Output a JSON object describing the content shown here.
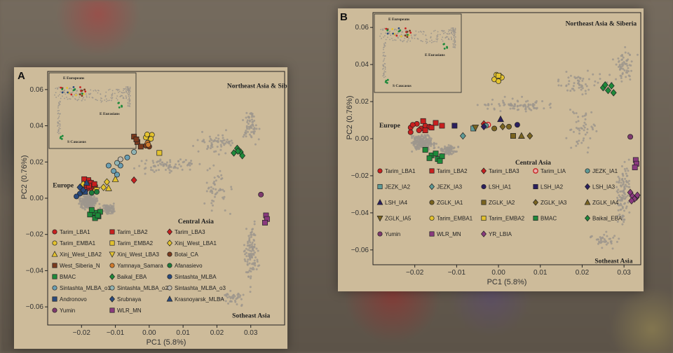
{
  "chart_data": [
    {
      "type": "scatter",
      "panel": "A",
      "xlabel": "PC1 (5.8%)",
      "ylabel": "PC2 (0.76%)",
      "xlim": [
        -0.03,
        0.04
      ],
      "ylim": [
        -0.07,
        0.07
      ],
      "xticks": [
        -0.02,
        -0.01,
        0.0,
        0.01,
        0.02,
        0.03
      ],
      "yticks": [
        0.06,
        0.04,
        0.02,
        0.0,
        -0.02,
        -0.04,
        -0.06
      ],
      "xtick_labels": [
        "−0.02",
        "−0.01",
        "0.00",
        "0.01",
        "0.02",
        "0.03"
      ],
      "ytick_labels": [
        "0.06",
        "0.04",
        "0.02",
        "0.00",
        "−0.02",
        "−0.04",
        "−0.06"
      ],
      "region_labels": [
        {
          "text": "Northeast Asia & Siberia",
          "x": 0.023,
          "y": 0.061
        },
        {
          "text": "Europe",
          "x": -0.0285,
          "y": 0.006
        },
        {
          "text": "Central Asia",
          "x": 0.0085,
          "y": -0.014
        },
        {
          "text": "Sotheast Asia",
          "x": 0.0245,
          "y": -0.066
        }
      ],
      "inset_labels": [
        "E Europeans",
        "E Eurasians",
        "S Caucasus"
      ],
      "legend_columns": 3,
      "series": [
        {
          "name": "Tarim_LBA1",
          "marker": "circle",
          "color": "#c8201f",
          "points": [
            [
              -0.019,
              0.009
            ],
            [
              -0.018,
              0.008
            ],
            [
              -0.0175,
              0.006
            ],
            [
              -0.019,
              0.006
            ],
            [
              -0.0165,
              0.007
            ],
            [
              -0.0185,
              0.005
            ],
            [
              -0.0178,
              0.0095
            ],
            [
              -0.0188,
              0.0075
            ],
            [
              -0.017,
              0.005
            ]
          ]
        },
        {
          "name": "Tarim_LBA2",
          "marker": "square",
          "color": "#c8201f",
          "points": [
            [
              -0.018,
              0.01
            ],
            [
              -0.0172,
              0.0085
            ],
            [
              -0.016,
              0.006
            ],
            [
              -0.0192,
              0.0105
            ],
            [
              -0.0162,
              0.0078
            ],
            [
              -0.0178,
              0.0068
            ]
          ]
        },
        {
          "name": "Tarim_LBA3",
          "marker": "diamond",
          "color": "#c8201f",
          "points": [
            [
              -0.0045,
              0.01
            ]
          ]
        },
        {
          "name": "Tarim_EMBA1",
          "marker": "circle",
          "color": "#e3c22f",
          "points": [
            [
              -0.0002,
              0.034
            ],
            [
              0.0008,
              0.035
            ],
            [
              0.0,
              0.0325
            ],
            [
              -0.001,
              0.0335
            ],
            [
              0.0005,
              0.0328
            ],
            [
              -0.0006,
              0.0352
            ]
          ]
        },
        {
          "name": "Tarim_EMBA2",
          "marker": "square",
          "color": "#e3c22f",
          "points": [
            [
              0.003,
              0.025
            ]
          ]
        },
        {
          "name": "Xinj_West_LBA1",
          "marker": "diamond",
          "color": "#e3c22f",
          "points": [
            [
              -0.0195,
              0.0078
            ],
            [
              -0.0135,
              0.006
            ],
            [
              -0.0125,
              0.009
            ]
          ]
        },
        {
          "name": "Xinj_West_LBA2",
          "marker": "triangle-up",
          "color": "#e3c22f",
          "points": [
            [
              -0.016,
              0.005
            ],
            [
              -0.012,
              0.0055
            ],
            [
              -0.01,
              0.0105
            ]
          ]
        },
        {
          "name": "Xinj_West_LBA3",
          "marker": "triangle-down",
          "color": "#e3c22f",
          "points": [
            [
              -0.0155,
              0.0045
            ]
          ]
        },
        {
          "name": "Botai_CA",
          "marker": "circle",
          "color": "#7a3a1d",
          "points": [
            [
              -0.001,
              0.029
            ],
            [
              0.0,
              0.0285
            ]
          ]
        },
        {
          "name": "West_Siberia_N",
          "marker": "square",
          "color": "#7a3a1d",
          "points": [
            [
              -0.0045,
              0.034
            ],
            [
              -0.0035,
              0.031
            ],
            [
              -0.0025,
              0.0285
            ],
            [
              -0.0038,
              0.0325
            ]
          ]
        },
        {
          "name": "Yamnaya_Samara",
          "marker": "circle",
          "color": "#d07a2c",
          "points": [
            [
              -0.0005,
              0.0305
            ],
            [
              -0.0003,
              0.0295
            ]
          ]
        },
        {
          "name": "Afanasievo",
          "marker": "circle",
          "color": "#1f7a3a",
          "points": [
            [
              -0.0155,
              0.0035
            ],
            [
              -0.017,
              0.003
            ]
          ]
        },
        {
          "name": "BMAC",
          "marker": "square",
          "color": "#1e8a3a",
          "points": [
            [
              -0.016,
              -0.008
            ],
            [
              -0.015,
              -0.01
            ],
            [
              -0.0175,
              -0.009
            ],
            [
              -0.0145,
              -0.0075
            ],
            [
              -0.016,
              -0.011
            ],
            [
              -0.017,
              -0.0065
            ],
            [
              -0.0152,
              -0.0095
            ]
          ]
        },
        {
          "name": "Baikal_EBA",
          "marker": "diamond",
          "color": "#1e8a3a",
          "points": [
            [
              0.026,
              0.0275
            ],
            [
              0.027,
              0.0255
            ],
            [
              0.025,
              0.025
            ],
            [
              0.0275,
              0.0235
            ],
            [
              0.0262,
              0.026
            ]
          ]
        },
        {
          "name": "Sintashta_MLBA",
          "marker": "circle",
          "color": "#2a4a7c",
          "points": [
            [
              -0.0205,
              0.0025
            ],
            [
              -0.0195,
              0.004
            ],
            [
              -0.0215,
              0.001
            ]
          ]
        },
        {
          "name": "Sintashta_MLBA_o1",
          "marker": "circle",
          "color": "#6a9fb3",
          "points": [
            [
              -0.0105,
              0.015
            ],
            [
              -0.012,
              0.018
            ],
            [
              -0.0085,
              0.018
            ],
            [
              -0.0065,
              0.0225
            ],
            [
              -0.0095,
              0.013
            ]
          ]
        },
        {
          "name": "Sintashta_MLBA_o2",
          "marker": "circle",
          "color": "#8fb3b3",
          "points": [
            [
              -0.0095,
              0.0195
            ],
            [
              -0.0045,
              0.0255
            ]
          ]
        },
        {
          "name": "Sintashta_MLBA_o3",
          "marker": "circle",
          "color": "#bfb9ad",
          "points": [
            [
              -0.0085,
              0.0215
            ]
          ]
        },
        {
          "name": "Andronovo",
          "marker": "square",
          "color": "#2a4a7c",
          "points": [
            [
              -0.019,
              0.0035
            ]
          ]
        },
        {
          "name": "Srubnaya",
          "marker": "diamond",
          "color": "#2a4a7c",
          "points": [
            [
              -0.0205,
              0.006
            ],
            [
              -0.0195,
              0.0045
            ]
          ]
        },
        {
          "name": "Krasnoyarsk_MLBA",
          "marker": "triangle-up",
          "color": "#2a4a7c",
          "points": [
            [
              -0.0185,
              0.0085
            ]
          ]
        },
        {
          "name": "Yumin",
          "marker": "circle",
          "color": "#7e3a6e",
          "points": [
            [
              0.033,
              0.002
            ]
          ]
        },
        {
          "name": "WLR_MN",
          "marker": "square",
          "color": "#8a3a7e",
          "points": [
            [
              0.0345,
              -0.0095
            ],
            [
              0.0348,
              -0.0115
            ],
            [
              0.0342,
              -0.0135
            ]
          ]
        }
      ]
    },
    {
      "type": "scatter",
      "panel": "B",
      "xlabel": "PC1 (5.8%)",
      "ylabel": "PC2 (0.76%)",
      "xlim": [
        -0.03,
        0.034
      ],
      "ylim": [
        -0.068,
        0.068
      ],
      "xticks": [
        -0.02,
        -0.01,
        0.0,
        0.01,
        0.02,
        0.03
      ],
      "yticks": [
        0.06,
        0.04,
        0.02,
        0.0,
        -0.02,
        -0.04,
        -0.06
      ],
      "xtick_labels": [
        "−0.02",
        "−0.01",
        "0.00",
        "0.01",
        "0.02",
        "0.03"
      ],
      "ytick_labels": [
        "0.06",
        "0.04",
        "0.02",
        "0.00",
        "−0.02",
        "−0.04",
        "−0.06"
      ],
      "region_labels": [
        {
          "text": "Northeast Asia & Siberia",
          "x": 0.016,
          "y": 0.061
        },
        {
          "text": "Europe",
          "x": -0.0285,
          "y": 0.006
        },
        {
          "text": "Central Asia",
          "x": 0.004,
          "y": -0.014
        },
        {
          "text": "Sotheast Asia",
          "x": 0.023,
          "y": -0.067
        }
      ],
      "inset_labels": [
        "E Europeans",
        "E Eurasians",
        "S Caucasus"
      ],
      "legend_columns": 5,
      "series": [
        {
          "name": "Tarim_LBA1",
          "marker": "circle",
          "color": "#c8201f",
          "points": [
            [
              -0.021,
              0.006
            ],
            [
              -0.0195,
              0.008
            ],
            [
              -0.0185,
              0.0055
            ],
            [
              -0.021,
              0.0035
            ],
            [
              -0.0175,
              0.007
            ],
            [
              -0.0165,
              0.0065
            ],
            [
              -0.0205,
              0.0075
            ],
            [
              -0.019,
              0.0045
            ]
          ]
        },
        {
          "name": "Tarim_LBA2",
          "marker": "square",
          "color": "#c8201f",
          "points": [
            [
              -0.018,
              0.0095
            ],
            [
              -0.016,
              0.006
            ],
            [
              -0.015,
              0.0085
            ],
            [
              -0.0175,
              0.0045
            ],
            [
              -0.0135,
              0.007
            ]
          ]
        },
        {
          "name": "Tarim_LBA3",
          "marker": "diamond",
          "color": "#c8201f",
          "points": [
            [
              -0.0035,
              0.008
            ]
          ]
        },
        {
          "name": "Tarim_LIA",
          "marker": "circle-open",
          "color": "#c8201f",
          "points": [
            [
              -0.0025,
              0.0075
            ]
          ]
        },
        {
          "name": "JEZK_IA1",
          "marker": "circle",
          "color": "#5e9a96",
          "points": [
            [
              -0.003,
              0.007
            ]
          ]
        },
        {
          "name": "JEZK_IA2",
          "marker": "square",
          "color": "#5e9a96",
          "points": [
            [
              -0.006,
              0.0055
            ]
          ]
        },
        {
          "name": "JEZK_IA3",
          "marker": "diamond",
          "color": "#5e9a96",
          "points": [
            [
              -0.0085,
              0.0015
            ]
          ]
        },
        {
          "name": "LSH_IA1",
          "marker": "circle",
          "color": "#2b1f5e",
          "points": [
            [
              0.0045,
              0.0075
            ]
          ]
        },
        {
          "name": "LSH_IA2",
          "marker": "square",
          "color": "#2b1f5e",
          "points": [
            [
              -0.0105,
              0.007
            ]
          ]
        },
        {
          "name": "LSH_IA3",
          "marker": "diamond",
          "color": "#2b1f5e",
          "points": [
            [
              -0.0035,
              0.0065
            ]
          ]
        },
        {
          "name": "LSH_IA4",
          "marker": "triangle-up",
          "color": "#2b1f5e",
          "points": [
            [
              0.0005,
              0.0105
            ]
          ]
        },
        {
          "name": "ZGLK_IA1",
          "marker": "circle",
          "color": "#7a6420",
          "points": [
            [
              -0.001,
              0.0055
            ],
            [
              0.0025,
              0.0065
            ]
          ]
        },
        {
          "name": "ZGLK_IA2",
          "marker": "square",
          "color": "#7a6420",
          "points": [
            [
              0.0035,
              0.0015
            ]
          ]
        },
        {
          "name": "ZGLK_IA3",
          "marker": "diamond",
          "color": "#7a6420",
          "points": [
            [
              0.001,
              0.0065
            ],
            [
              0.0075,
              0.0015
            ]
          ]
        },
        {
          "name": "ZGLK_IA4",
          "marker": "triangle-up",
          "color": "#7a6420",
          "points": [
            [
              0.0055,
              0.0015
            ]
          ]
        },
        {
          "name": "ZGLK_IA5",
          "marker": "triangle-down",
          "color": "#7a6420",
          "points": [
            [
              -0.0055,
              0.006
            ]
          ]
        },
        {
          "name": "Tarim_EMBA1",
          "marker": "circle",
          "color": "#e3c22f",
          "points": [
            [
              -0.0005,
              0.0345
            ],
            [
              0.0005,
              0.0335
            ],
            [
              -0.001,
              0.032
            ],
            [
              0.0,
              0.031
            ],
            [
              0.0008,
              0.033
            ]
          ]
        },
        {
          "name": "Tarim_EMBA2",
          "marker": "square",
          "color": "#e3c22f",
          "points": [
            [
              0.0,
              0.034
            ]
          ]
        },
        {
          "name": "BMAC",
          "marker": "square",
          "color": "#1e8a3a",
          "points": [
            [
              -0.016,
              -0.009
            ],
            [
              -0.0145,
              -0.011
            ],
            [
              -0.015,
              -0.008
            ],
            [
              -0.0135,
              -0.0095
            ],
            [
              -0.0165,
              -0.0105
            ],
            [
              -0.014,
              -0.012
            ],
            [
              -0.0175,
              -0.006
            ]
          ]
        },
        {
          "name": "Baikal_EBA",
          "marker": "diamond",
          "color": "#1e8a3a",
          "points": [
            [
              0.025,
              0.0275
            ],
            [
              0.0262,
              0.026
            ],
            [
              0.0275,
              0.0248
            ],
            [
              0.0255,
              0.029
            ],
            [
              0.027,
              0.0285
            ]
          ]
        },
        {
          "name": "Yumin",
          "marker": "circle",
          "color": "#7e3a6e",
          "points": [
            [
              0.0315,
              0.001
            ]
          ]
        },
        {
          "name": "WLR_MN",
          "marker": "square",
          "color": "#8a3a7e",
          "points": [
            [
              0.0328,
              -0.0115
            ],
            [
              0.033,
              -0.0135
            ],
            [
              0.0326,
              -0.0155
            ]
          ]
        },
        {
          "name": "YR_LBIA",
          "marker": "diamond",
          "color": "#8a3a7e",
          "points": [
            [
              0.0315,
              -0.029
            ],
            [
              0.032,
              -0.031
            ],
            [
              0.033,
              -0.0315
            ],
            [
              0.0325,
              -0.0325
            ],
            [
              0.0332,
              -0.0305
            ],
            [
              0.0318,
              -0.0335
            ]
          ]
        }
      ]
    }
  ]
}
